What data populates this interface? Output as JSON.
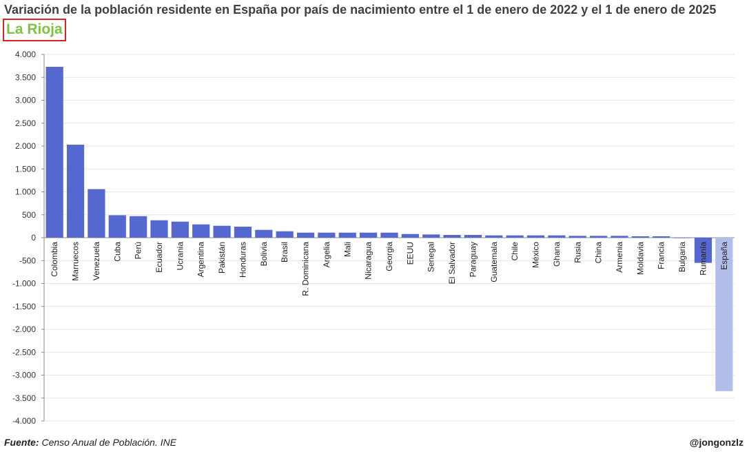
{
  "title": "Variación de la población residente en España por país de nacimiento entre el 1 de enero de 2022 y el 1 de enero de 2025",
  "subtitle": "La Rioja",
  "footer": {
    "source_label": "Fuente:",
    "source_text": "Censo Anual de Población. INE",
    "credit": "@jongonzlz"
  },
  "colors": {
    "bar": "#5468cf",
    "bar_highlight": "#b3bdea",
    "subtitle": "#7dc242",
    "subtitle_border": "#e02020"
  },
  "chart_data": {
    "type": "bar",
    "title": "Variación de la población residente en España por país de nacimiento entre el 1 de enero de 2022 y el 1 de enero de 2025",
    "subtitle": "La Rioja",
    "categories": [
      "Colombia",
      "Marruecos",
      "Venezuela",
      "Cuba",
      "Perú",
      "Ecuador",
      "Ucrania",
      "Argentina",
      "Pakistán",
      "Honduras",
      "Bolivia",
      "Brasil",
      "R. Dominicana",
      "Argelia",
      "Mali",
      "Nicaragua",
      "Georgia",
      "EEUU",
      "Senegal",
      "El Salvador",
      "Paraguay",
      "Guatemala",
      "Chile",
      "México",
      "Ghana",
      "Rusia",
      "China",
      "Armenia",
      "Moldavia",
      "Francia",
      "Bulgaria",
      "Rumanía",
      "España"
    ],
    "values": [
      3730,
      2030,
      1060,
      490,
      470,
      380,
      350,
      290,
      260,
      240,
      170,
      140,
      110,
      110,
      110,
      110,
      110,
      80,
      70,
      60,
      60,
      50,
      50,
      50,
      50,
      40,
      40,
      40,
      30,
      30,
      -10,
      -550,
      -3350
    ],
    "highlight_category": "España",
    "ylim": [
      -4000,
      4000
    ],
    "yticks": [
      4000,
      3500,
      3000,
      2500,
      2000,
      1500,
      1000,
      500,
      0,
      -500,
      -1000,
      -1500,
      -2000,
      -2500,
      -3000,
      -3500,
      -4000
    ],
    "ytick_labels": [
      "4.000",
      "3.500",
      "3.000",
      "2.500",
      "2.000",
      "1.500",
      "1.000",
      "500",
      "0",
      "-500",
      "-1.000",
      "-1.500",
      "-2.000",
      "-2.500",
      "-3.000",
      "-3.500",
      "-4.000"
    ],
    "xlabel": "",
    "ylabel": "",
    "grid": true,
    "legend": "none"
  }
}
